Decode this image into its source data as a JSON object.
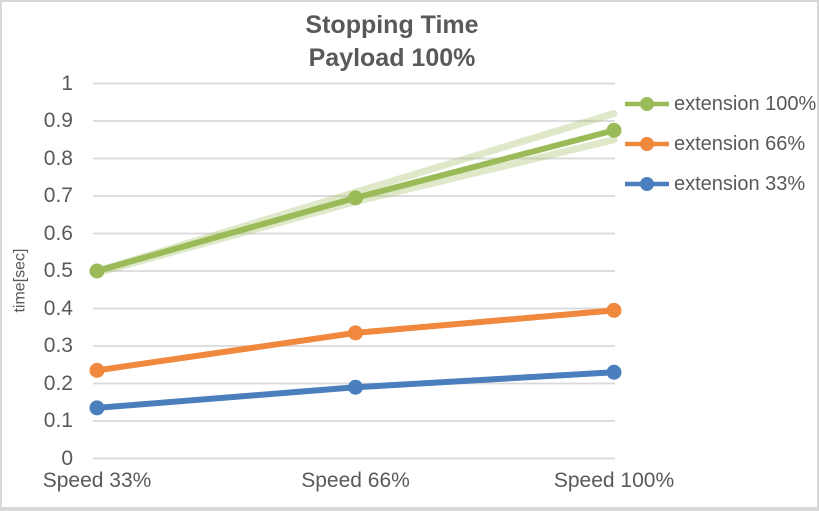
{
  "window": {
    "background": "#FFFFFF",
    "border_color": "#D8D8D8"
  },
  "chart_data": {
    "type": "line",
    "title": "Stopping Time",
    "subtitle": "Payload 100%",
    "ylabel": "time[sec]",
    "xlabel": "",
    "ylim": [
      0,
      1
    ],
    "y_tick_step": 0.1,
    "y_ticks": [
      "1",
      "0.9",
      "0.8",
      "0.7",
      "0.6",
      "0.5",
      "0.4",
      "0.3",
      "0.2",
      "0.1",
      "0"
    ],
    "grid": true,
    "legend_position": "right",
    "categories": [
      "Speed 33%",
      "Speed 66%",
      "Speed 100%"
    ],
    "series": [
      {
        "name": "extension 100%",
        "values": [
          0.5,
          0.695,
          0.875
        ],
        "color": "#9BBB59",
        "marker": "circle"
      },
      {
        "name": "extension 66%",
        "values": [
          0.235,
          0.335,
          0.395
        ],
        "color": "#F0883E",
        "marker": "circle"
      },
      {
        "name": "extension 33%",
        "values": [
          0.135,
          0.19,
          0.23
        ],
        "color": "#4A7EBD",
        "marker": "circle"
      }
    ],
    "background_runs": [
      {
        "series": "extension 100%",
        "values": [
          0.5,
          0.71,
          0.92
        ],
        "color": "#9BBB59",
        "opacity": 0.32
      },
      {
        "series": "extension 100%",
        "values": [
          0.495,
          0.685,
          0.85
        ],
        "color": "#9BBB59",
        "opacity": 0.32
      }
    ],
    "colors": {
      "grid": "#D9D9D9",
      "text": "#595959"
    }
  }
}
